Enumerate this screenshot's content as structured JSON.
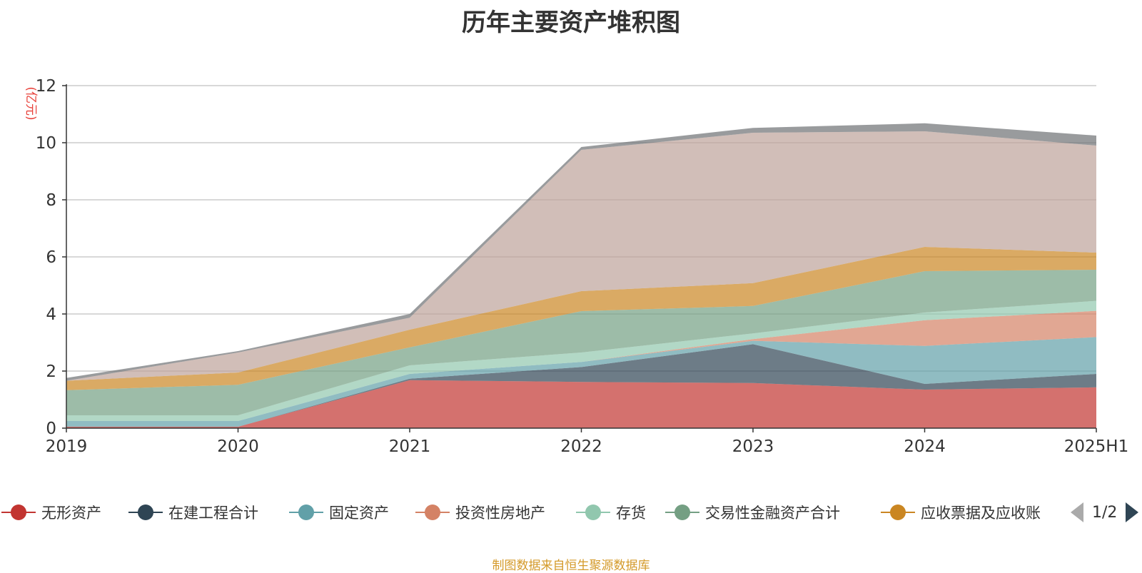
{
  "chart_data": {
    "type": "area",
    "stacked": true,
    "title": "历年主要资产堆积图",
    "unit_label": "(亿元)",
    "categories": [
      "2019",
      "2020",
      "2021",
      "2022",
      "2023",
      "2024",
      "2025H1"
    ],
    "ylim": [
      0,
      12
    ],
    "yticks": [
      0,
      2,
      4,
      6,
      8,
      10,
      12
    ],
    "grid": true,
    "series": [
      {
        "name": "无形资产",
        "color": "#c23531",
        "values": [
          0.05,
          0.05,
          1.68,
          1.62,
          1.58,
          1.35,
          1.43
        ]
      },
      {
        "name": "在建工程合计",
        "color": "#2f4554",
        "values": [
          0.0,
          0.0,
          0.05,
          0.52,
          1.36,
          0.2,
          0.47
        ]
      },
      {
        "name": "固定资产",
        "color": "#61a0a8",
        "values": [
          0.2,
          0.2,
          0.17,
          0.18,
          0.12,
          1.33,
          1.29
        ]
      },
      {
        "name": "投资性房地产",
        "color": "#d48265",
        "values": [
          0.0,
          0.0,
          0.0,
          0.0,
          0.06,
          0.9,
          0.92
        ]
      },
      {
        "name": "存货",
        "color": "#91c7ae",
        "values": [
          0.2,
          0.2,
          0.3,
          0.33,
          0.2,
          0.27,
          0.35
        ]
      },
      {
        "name": "交易性金融资产合计",
        "color": "#749f83",
        "values": [
          0.88,
          1.07,
          0.63,
          1.45,
          0.96,
          1.45,
          1.09
        ]
      },
      {
        "name": "应收票据及应收账",
        "color": "#ca8622",
        "values": [
          0.33,
          0.43,
          0.62,
          0.7,
          0.8,
          0.85,
          0.6
        ]
      },
      {
        "color": "#bda29a",
        "values": [
          0.0,
          0.7,
          0.42,
          4.95,
          5.27,
          4.05,
          3.75
        ]
      },
      {
        "color": "#6e7074",
        "values": [
          0.1,
          0.05,
          0.13,
          0.1,
          0.17,
          0.28,
          0.35
        ]
      }
    ]
  },
  "legend": {
    "page_text": "1/2"
  },
  "source_text": "制图数据来自恒生聚源数据库"
}
